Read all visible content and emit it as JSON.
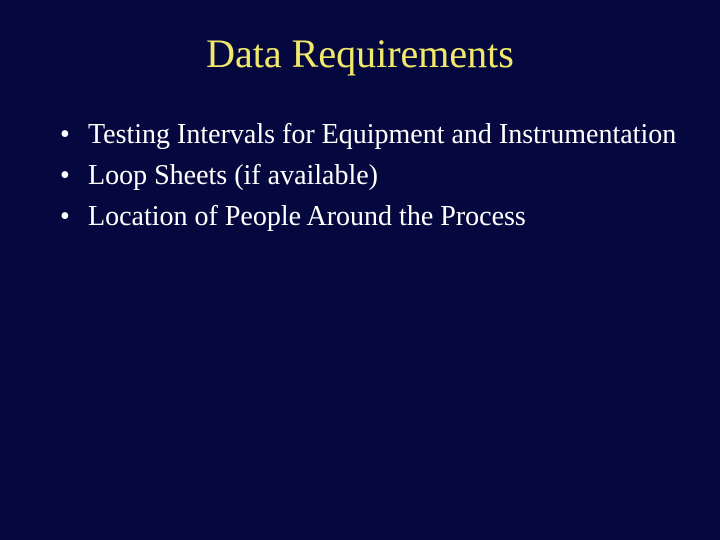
{
  "slide": {
    "background_color": "#04083e",
    "title": {
      "text": "Data Requirements",
      "color": "#f2e96b",
      "fontsize": 40,
      "font_family": "Times New Roman"
    },
    "bullets": {
      "color": "#ffffff",
      "fontsize": 28,
      "font_family": "Times New Roman",
      "items": [
        "Testing Intervals for Equipment and Instrumentation",
        "Loop Sheets (if available)",
        "Location of People Around the Process"
      ]
    }
  }
}
